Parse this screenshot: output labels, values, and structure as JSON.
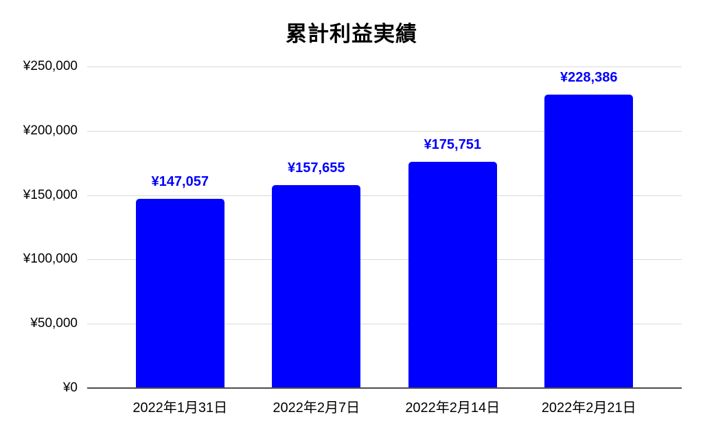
{
  "chart_data": {
    "type": "bar",
    "title": "累計利益実績",
    "categories": [
      "2022年1月31日",
      "2022年2月7日",
      "2022年2月14日",
      "2022年2月21日"
    ],
    "values": [
      147057,
      157655,
      175751,
      228386
    ],
    "data_labels": [
      "¥147,057",
      "¥157,655",
      "¥175,751",
      "¥228,386"
    ],
    "y_ticks": [
      {
        "label": "¥250,000",
        "value": 250000
      },
      {
        "label": "¥200,000",
        "value": 200000
      },
      {
        "label": "¥150,000",
        "value": 150000
      },
      {
        "label": "¥100,000",
        "value": 100000
      },
      {
        "label": "¥50,000",
        "value": 50000
      },
      {
        "label": "¥0",
        "value": 0
      }
    ],
    "ylim": [
      0,
      250000
    ],
    "xlabel": "",
    "ylabel": "",
    "grid": "horizontal-only",
    "legend": "none",
    "colors": {
      "bar": "#0000ff",
      "data_label": "#0000ff",
      "gridline": "#d9d9d9",
      "baseline": "#4a4a4a",
      "text": "#000000",
      "background": "#ffffff"
    }
  }
}
